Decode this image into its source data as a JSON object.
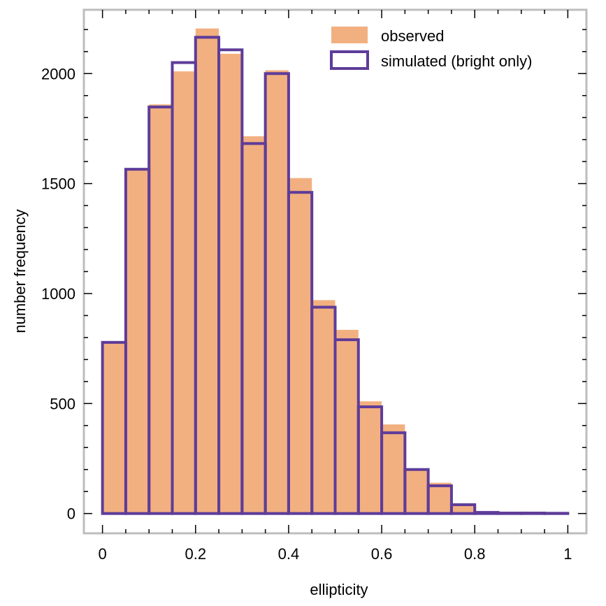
{
  "chart_data": {
    "type": "bar",
    "title": "",
    "xlabel": "ellipticity",
    "ylabel": "number frequency",
    "xlim": [
      -0.04,
      1.04
    ],
    "ylim": [
      -90,
      2290
    ],
    "bin_edges": [
      0,
      0.05,
      0.1,
      0.15,
      0.2,
      0.25,
      0.3,
      0.35,
      0.4,
      0.45,
      0.5,
      0.55,
      0.6,
      0.65,
      0.7,
      0.75,
      0.8,
      0.85,
      0.9,
      0.95,
      1.0
    ],
    "x_ticks": [
      0,
      0.2,
      0.4,
      0.6,
      0.8,
      1
    ],
    "x_tick_labels": [
      "0",
      "0.2",
      "0.4",
      "0.6",
      "0.8",
      "1"
    ],
    "y_ticks": [
      0,
      500,
      1000,
      1500,
      2000
    ],
    "y_tick_labels": [
      "0",
      "500",
      "1000",
      "1500",
      "2000"
    ],
    "legend_position": "top-right",
    "series": [
      {
        "name": "observed",
        "style": "filled",
        "color": "#f2b080",
        "values": [
          775,
          1565,
          1860,
          2010,
          2205,
          2090,
          1715,
          2015,
          1525,
          970,
          835,
          510,
          405,
          200,
          140,
          40,
          8,
          3,
          2,
          1
        ]
      },
      {
        "name": "simulated (bright only)",
        "style": "step",
        "color": "#5e3c99",
        "values": [
          778,
          1565,
          1848,
          2050,
          2165,
          2108,
          1682,
          2000,
          1460,
          938,
          790,
          485,
          367,
          200,
          126,
          40,
          5,
          2,
          2,
          1
        ]
      }
    ]
  }
}
